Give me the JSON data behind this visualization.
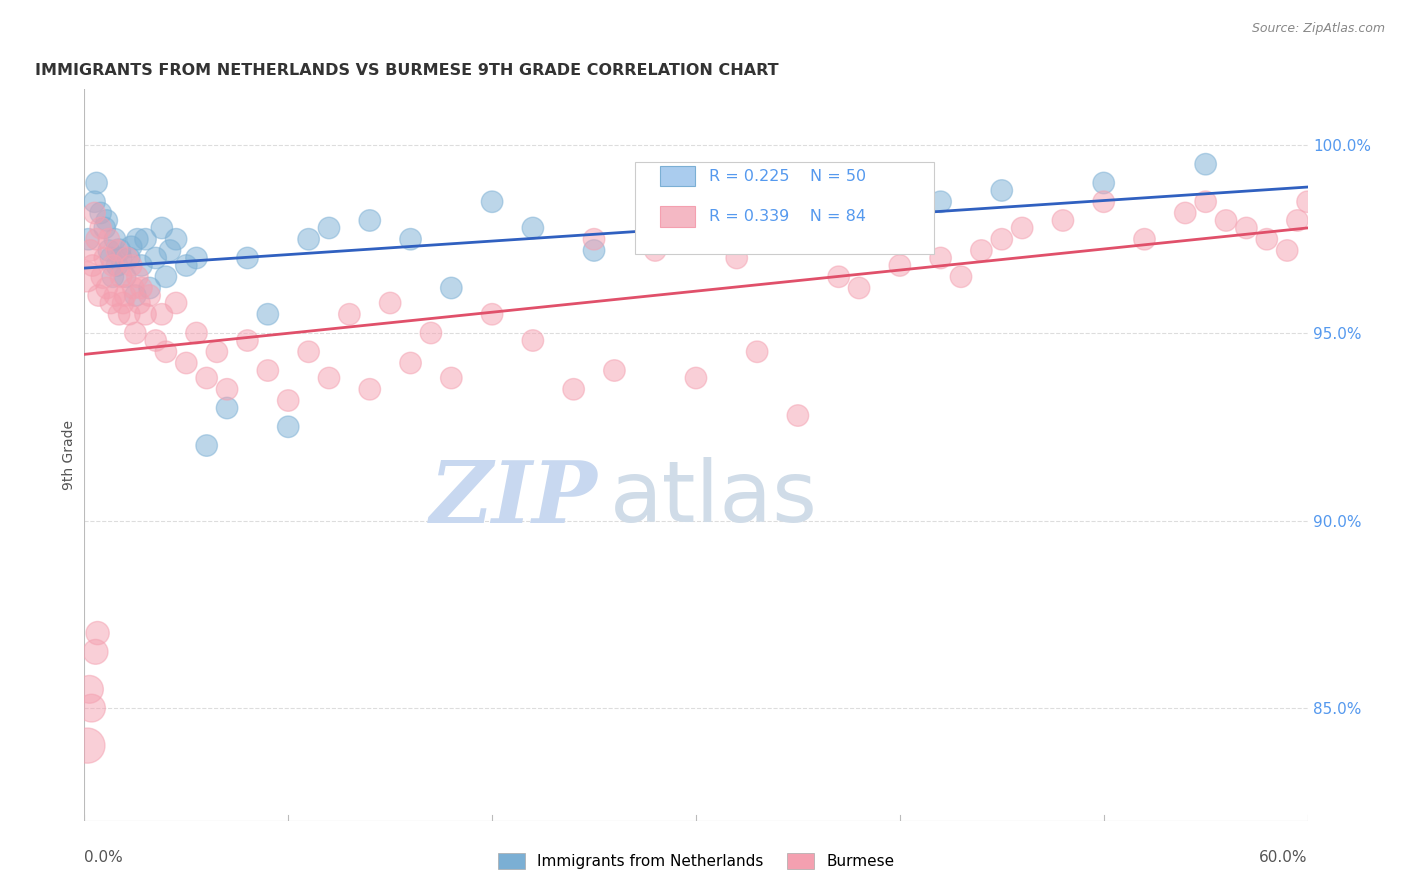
{
  "title": "IMMIGRANTS FROM NETHERLANDS VS BURMESE 9TH GRADE CORRELATION CHART",
  "source": "Source: ZipAtlas.com",
  "ylabel": "9th Grade",
  "right_yticks": [
    85.0,
    90.0,
    95.0,
    100.0
  ],
  "right_ytick_labels": [
    "85.0%",
    "90.0%",
    "95.0%",
    "100.0%"
  ],
  "legend_label1": "Immigrants from Netherlands",
  "legend_label2": "Burmese",
  "r1": 0.225,
  "n1": 50,
  "r2": 0.339,
  "n2": 84,
  "color1": "#7bafd4",
  "color2": "#f4a0b0",
  "line_color1": "#3060c0",
  "line_color2": "#e0506a",
  "blue_x": [
    0.2,
    0.5,
    0.6,
    0.8,
    1.0,
    1.1,
    1.2,
    1.3,
    1.4,
    1.5,
    1.6,
    1.7,
    1.8,
    2.0,
    2.2,
    2.3,
    2.5,
    2.6,
    2.8,
    3.0,
    3.2,
    3.5,
    3.8,
    4.0,
    4.2,
    4.5,
    5.0,
    5.5,
    6.0,
    7.0,
    8.0,
    9.0,
    10.0,
    11.0,
    12.0,
    14.0,
    16.0,
    18.0,
    20.0,
    22.0,
    25.0,
    28.0,
    30.0,
    32.0,
    35.0,
    38.0,
    42.0,
    45.0,
    50.0,
    55.0
  ],
  "blue_y": [
    97.5,
    98.5,
    99.0,
    98.2,
    97.8,
    98.0,
    97.2,
    97.0,
    96.5,
    97.5,
    96.8,
    97.2,
    97.0,
    96.5,
    97.0,
    97.3,
    96.0,
    97.5,
    96.8,
    97.5,
    96.2,
    97.0,
    97.8,
    96.5,
    97.2,
    97.5,
    96.8,
    97.0,
    92.0,
    93.0,
    97.0,
    95.5,
    92.5,
    97.5,
    97.8,
    98.0,
    97.5,
    96.2,
    98.5,
    97.8,
    97.2,
    97.5,
    98.0,
    97.5,
    97.8,
    98.2,
    98.5,
    98.8,
    99.0,
    99.5
  ],
  "blue_sizes": [
    30,
    30,
    30,
    30,
    30,
    30,
    30,
    30,
    30,
    30,
    30,
    35,
    30,
    30,
    30,
    30,
    30,
    30,
    30,
    30,
    30,
    30,
    30,
    30,
    30,
    30,
    30,
    30,
    30,
    30,
    30,
    30,
    30,
    30,
    30,
    30,
    30,
    30,
    30,
    30,
    30,
    30,
    30,
    30,
    30,
    30,
    30,
    30,
    30,
    30
  ],
  "pink_x": [
    0.1,
    0.3,
    0.4,
    0.5,
    0.6,
    0.7,
    0.8,
    0.9,
    1.0,
    1.1,
    1.2,
    1.3,
    1.4,
    1.5,
    1.6,
    1.7,
    1.8,
    1.9,
    2.0,
    2.1,
    2.2,
    2.3,
    2.4,
    2.5,
    2.6,
    2.7,
    2.8,
    3.0,
    3.2,
    3.5,
    3.8,
    4.0,
    4.5,
    5.0,
    5.5,
    6.0,
    6.5,
    7.0,
    8.0,
    9.0,
    10.0,
    11.0,
    12.0,
    13.0,
    14.0,
    15.0,
    16.0,
    17.0,
    18.0,
    20.0,
    22.0,
    24.0,
    25.0,
    26.0,
    28.0,
    30.0,
    32.0,
    33.0,
    35.0,
    37.0,
    38.0,
    40.0,
    41.0,
    42.0,
    43.0,
    44.0,
    45.0,
    46.0,
    48.0,
    50.0,
    52.0,
    54.0,
    55.0,
    56.0,
    57.0,
    58.0,
    59.0,
    59.5,
    60.0,
    0.15,
    0.25,
    0.35,
    0.55,
    0.65
  ],
  "pink_y": [
    96.5,
    97.2,
    96.8,
    98.2,
    97.5,
    96.0,
    97.8,
    96.5,
    97.0,
    96.2,
    97.5,
    95.8,
    96.8,
    96.0,
    97.2,
    95.5,
    96.5,
    95.8,
    96.0,
    97.0,
    95.5,
    96.8,
    96.2,
    95.0,
    96.5,
    95.8,
    96.2,
    95.5,
    96.0,
    94.8,
    95.5,
    94.5,
    95.8,
    94.2,
    95.0,
    93.8,
    94.5,
    93.5,
    94.8,
    94.0,
    93.2,
    94.5,
    93.8,
    95.5,
    93.5,
    95.8,
    94.2,
    95.0,
    93.8,
    95.5,
    94.8,
    93.5,
    97.5,
    94.0,
    97.2,
    93.8,
    97.0,
    94.5,
    92.8,
    96.5,
    96.2,
    96.8,
    97.5,
    97.0,
    96.5,
    97.2,
    97.5,
    97.8,
    98.0,
    98.5,
    97.5,
    98.2,
    98.5,
    98.0,
    97.8,
    97.5,
    97.2,
    98.0,
    98.5,
    84.0,
    85.5,
    85.0,
    86.5,
    87.0
  ],
  "pink_sizes": [
    60,
    30,
    30,
    30,
    30,
    30,
    30,
    35,
    30,
    30,
    30,
    30,
    30,
    30,
    30,
    30,
    30,
    30,
    30,
    30,
    30,
    30,
    30,
    30,
    30,
    30,
    30,
    30,
    30,
    30,
    30,
    30,
    30,
    30,
    30,
    30,
    30,
    30,
    30,
    30,
    30,
    30,
    30,
    30,
    30,
    30,
    30,
    30,
    30,
    30,
    30,
    30,
    30,
    30,
    30,
    30,
    30,
    30,
    30,
    30,
    30,
    30,
    30,
    30,
    30,
    30,
    30,
    30,
    30,
    30,
    30,
    30,
    30,
    30,
    30,
    30,
    30,
    30,
    30,
    80,
    50,
    50,
    40,
    35
  ],
  "xmin": 0.0,
  "xmax": 60.0,
  "ymin": 82.0,
  "ymax": 101.5,
  "background_color": "#ffffff",
  "grid_color": "#dddddd",
  "title_color": "#333333",
  "axis_color": "#555555",
  "right_axis_color": "#5599ee",
  "watermark_zip_color": "#c8d8f0",
  "watermark_atlas_color": "#d0dce8"
}
